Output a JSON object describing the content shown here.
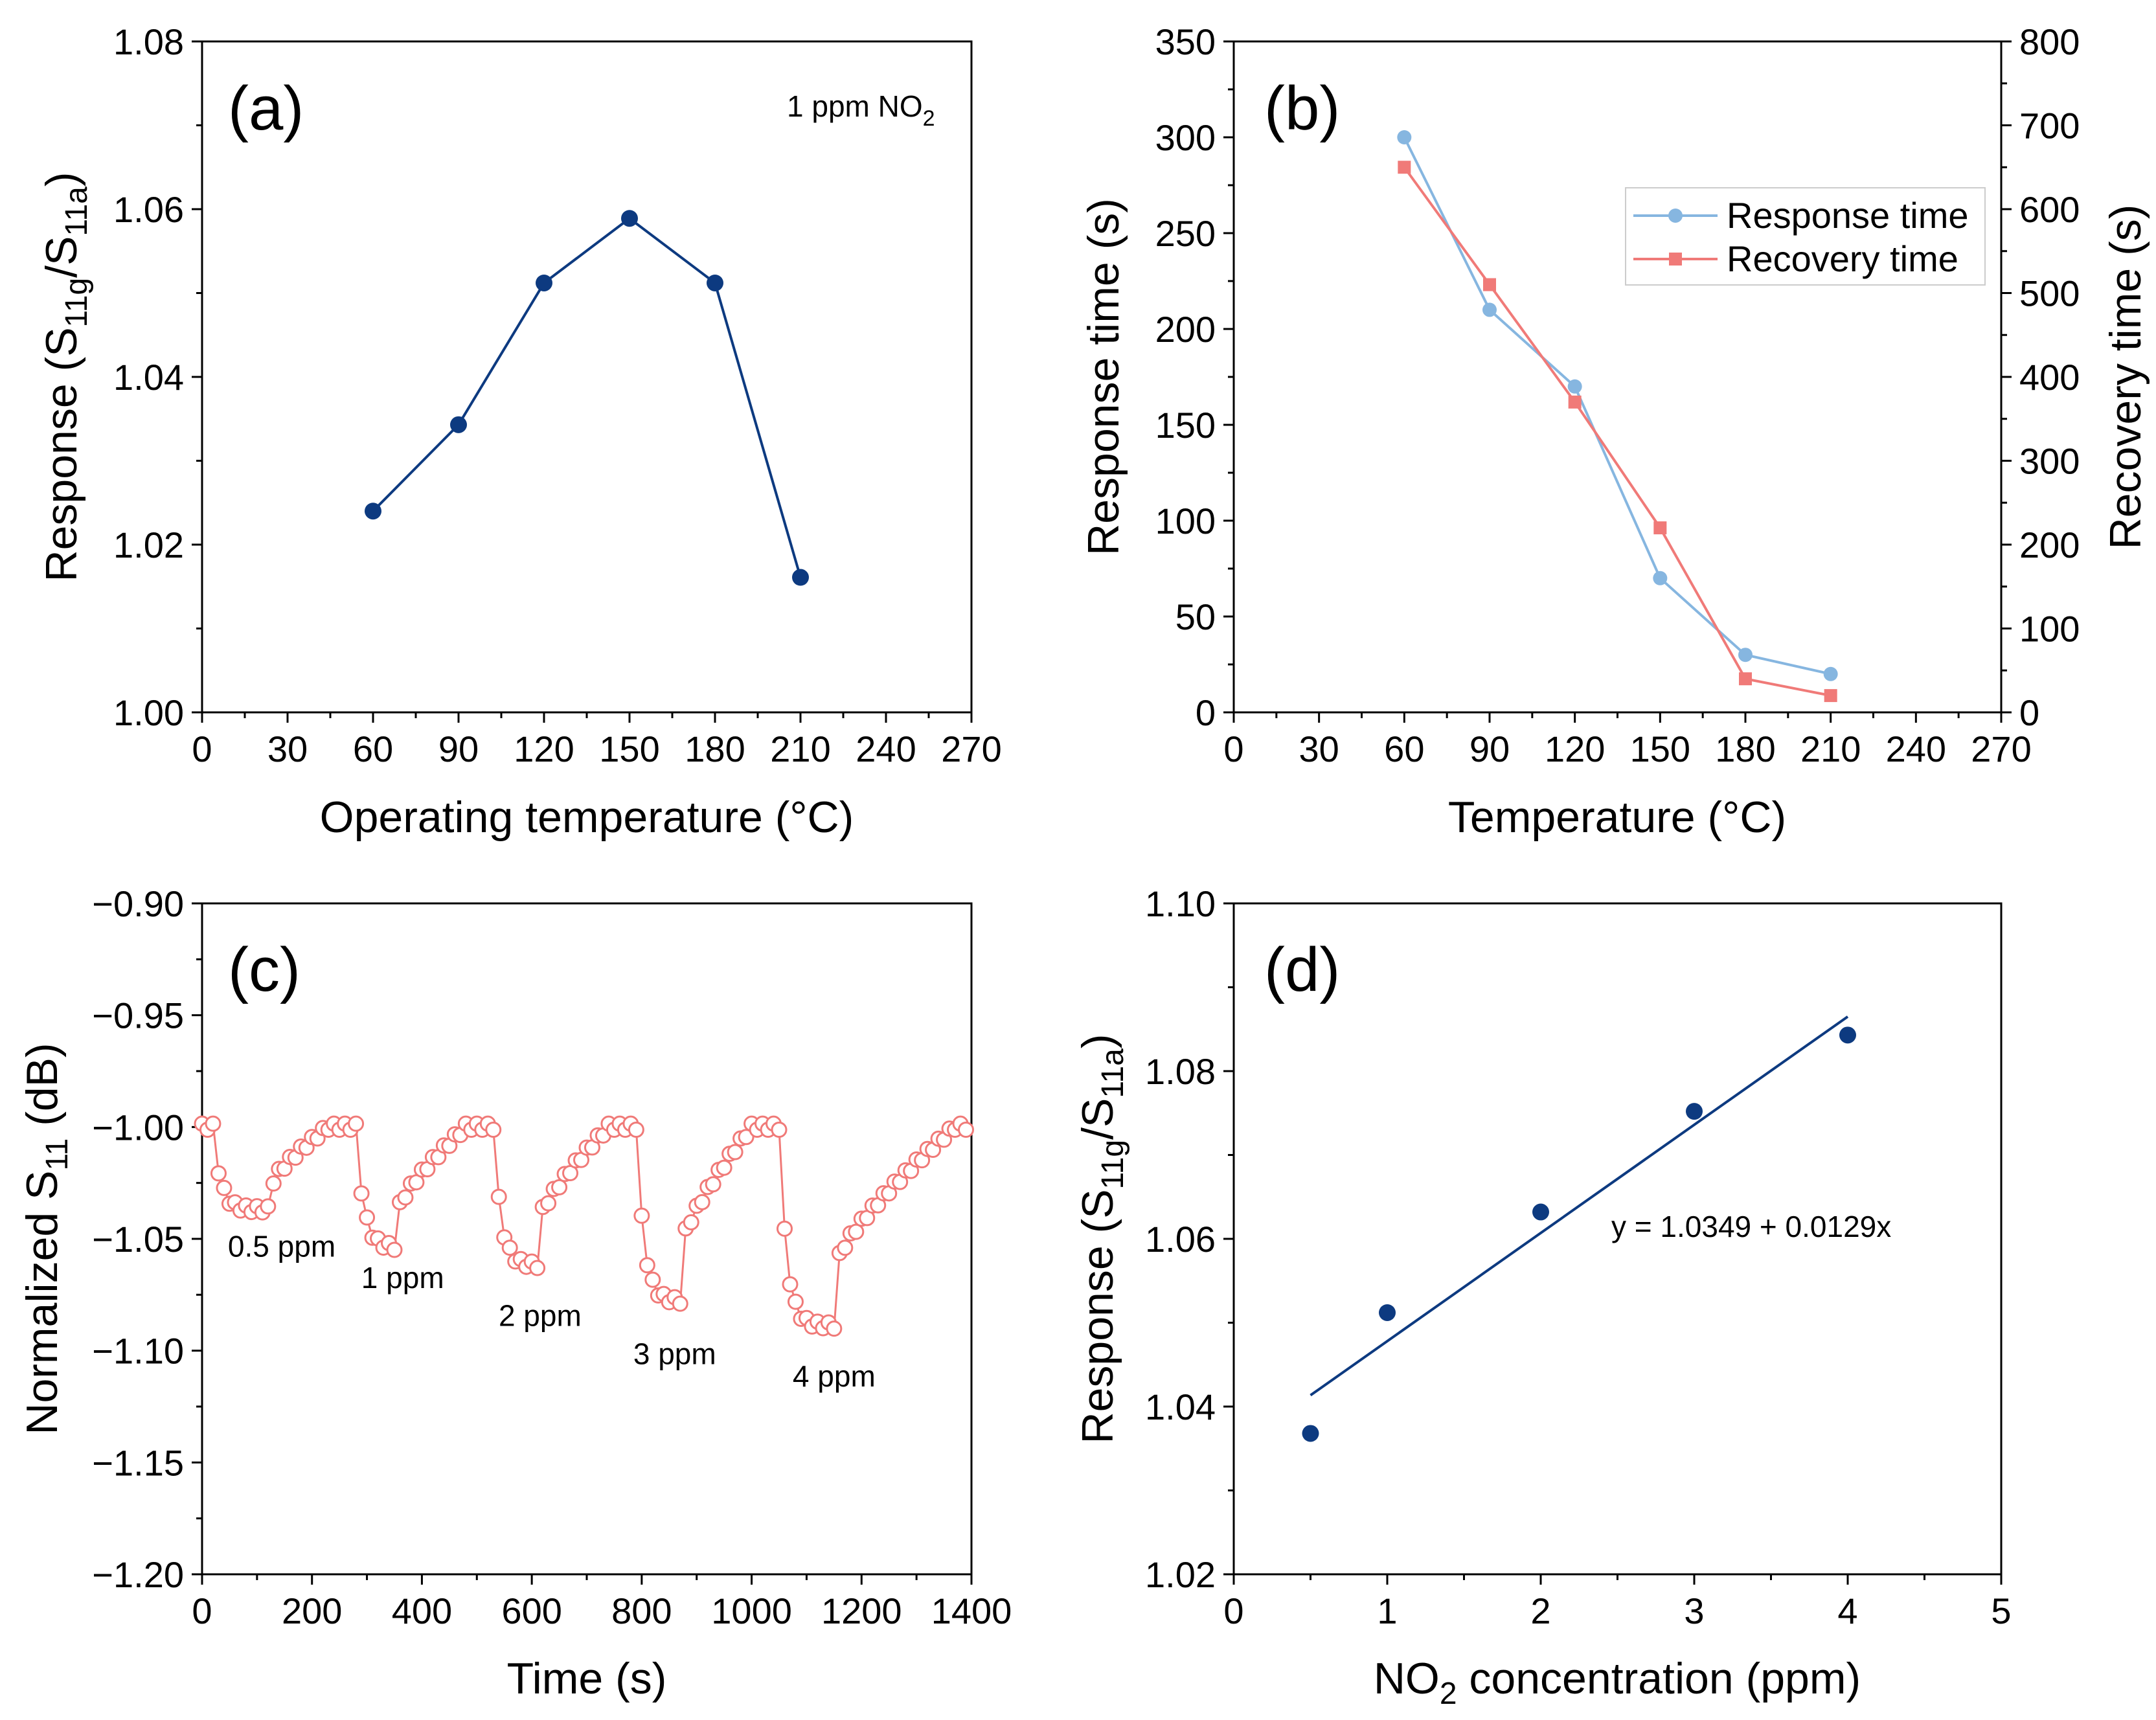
{
  "chart_data": [
    {
      "panel_label": "(a)",
      "type": "line",
      "annotation": {
        "main": "1 ppm NO",
        "sub": "2"
      },
      "xlabel": "Operating temperature (°C)",
      "ylabel": {
        "main": "Response (S",
        "sub1": "11g",
        "mid": "/S",
        "sub2": "11a",
        "end": ")"
      },
      "xlim": [
        0,
        270
      ],
      "ylim": [
        1.0,
        1.08
      ],
      "xticks": [
        "0",
        "30",
        "60",
        "90",
        "120",
        "150",
        "180",
        "210",
        "240",
        "270"
      ],
      "yticks": [
        "1.00",
        "1.02",
        "1.04",
        "1.06",
        "1.08"
      ],
      "color": "#0d3a80",
      "series": [
        {
          "x": [
            60,
            90,
            120,
            150,
            180,
            210
          ],
          "values": [
            1.024,
            1.0343,
            1.0512,
            1.0589,
            1.0512,
            1.0161
          ]
        }
      ]
    },
    {
      "panel_label": "(b)",
      "type": "line",
      "xlabel": "Temperature (°C)",
      "ylabel": "Response time (s)",
      "ylabel_right": "Recovery time (s)",
      "xlim": [
        0,
        270
      ],
      "ylim": [
        0,
        350
      ],
      "ylim_right": [
        0,
        800
      ],
      "xticks": [
        "0",
        "30",
        "60",
        "90",
        "120",
        "150",
        "180",
        "210",
        "240",
        "270"
      ],
      "yticks": [
        "0",
        "50",
        "100",
        "150",
        "200",
        "250",
        "300",
        "350"
      ],
      "yticks_right": [
        "0",
        "100",
        "200",
        "300",
        "400",
        "500",
        "600",
        "700",
        "800"
      ],
      "legend": {
        "position": "upper-right"
      },
      "series": [
        {
          "name": "Response time",
          "axis": "left",
          "marker": "circle",
          "color": "#86b6e0",
          "x": [
            60,
            90,
            120,
            150,
            180,
            210
          ],
          "values": [
            300,
            210,
            170,
            70,
            30,
            20
          ]
        },
        {
          "name": "Recovery time",
          "axis": "right",
          "marker": "square",
          "color": "#f07a78",
          "x": [
            60,
            90,
            120,
            150,
            180,
            210
          ],
          "values": [
            650,
            510,
            370,
            220,
            40,
            20
          ]
        }
      ]
    },
    {
      "panel_label": "(c)",
      "type": "line",
      "xlabel": "Time (s)",
      "ylabel": {
        "main": "Normalized S",
        "sub": "11",
        "end": " (dB)"
      },
      "xlim": [
        0,
        1400
      ],
      "ylim": [
        -1.2,
        -0.9
      ],
      "xticks": [
        "0",
        "200",
        "400",
        "600",
        "800",
        "1000",
        "1200",
        "1400"
      ],
      "yticks": [
        "−1.20",
        "−1.15",
        "−1.10",
        "−1.05",
        "−1.00",
        "−0.95",
        "−0.90"
      ],
      "color": "#f07a78",
      "segments": [
        {
          "start": 0,
          "end": 260,
          "rise_start": 130,
          "floor": -1.037,
          "label": "0.5 ppm",
          "label_x": 145,
          "label_y": -1.058
        },
        {
          "start": 260,
          "end": 510,
          "rise_start": 360,
          "floor": -1.054,
          "label": "1 ppm",
          "label_x": 365,
          "label_y": -1.072
        },
        {
          "start": 510,
          "end": 770,
          "rise_start": 615,
          "floor": -1.062,
          "label": "2 ppm",
          "label_x": 615,
          "label_y": -1.089
        },
        {
          "start": 770,
          "end": 1030,
          "rise_start": 875,
          "floor": -1.078,
          "label": "3 ppm",
          "label_x": 860,
          "label_y": -1.106
        },
        {
          "start": 1030,
          "end": 1400,
          "rise_start": 1160,
          "floor": -1.089,
          "label": "4 ppm",
          "label_x": 1150,
          "label_y": -1.116
        }
      ],
      "sample_interval_s": 10
    },
    {
      "panel_label": "(d)",
      "type": "scatter",
      "xlabel": {
        "main": "NO",
        "sub": "2",
        "end": " concentration (ppm)"
      },
      "ylabel": {
        "main": "Response (S",
        "sub1": "11g",
        "mid": "/S",
        "sub2": "11a",
        "end": ")"
      },
      "xlim": [
        0,
        5
      ],
      "ylim": [
        1.02,
        1.1
      ],
      "xticks": [
        "0",
        "1",
        "2",
        "3",
        "4",
        "5"
      ],
      "yticks": [
        "1.02",
        "1.04",
        "1.06",
        "1.08",
        "1.10"
      ],
      "color": "#0d3a80",
      "series": [
        {
          "x": [
            0.5,
            1,
            2,
            3,
            4
          ],
          "values": [
            1.0368,
            1.0512,
            1.0632,
            1.0752,
            1.0843
          ]
        }
      ],
      "fit": {
        "intercept": 1.0349,
        "slope": 0.0129,
        "x_range": [
          0.5,
          4
        ],
        "label": "y = 1.0349 + 0.0129x"
      }
    }
  ]
}
